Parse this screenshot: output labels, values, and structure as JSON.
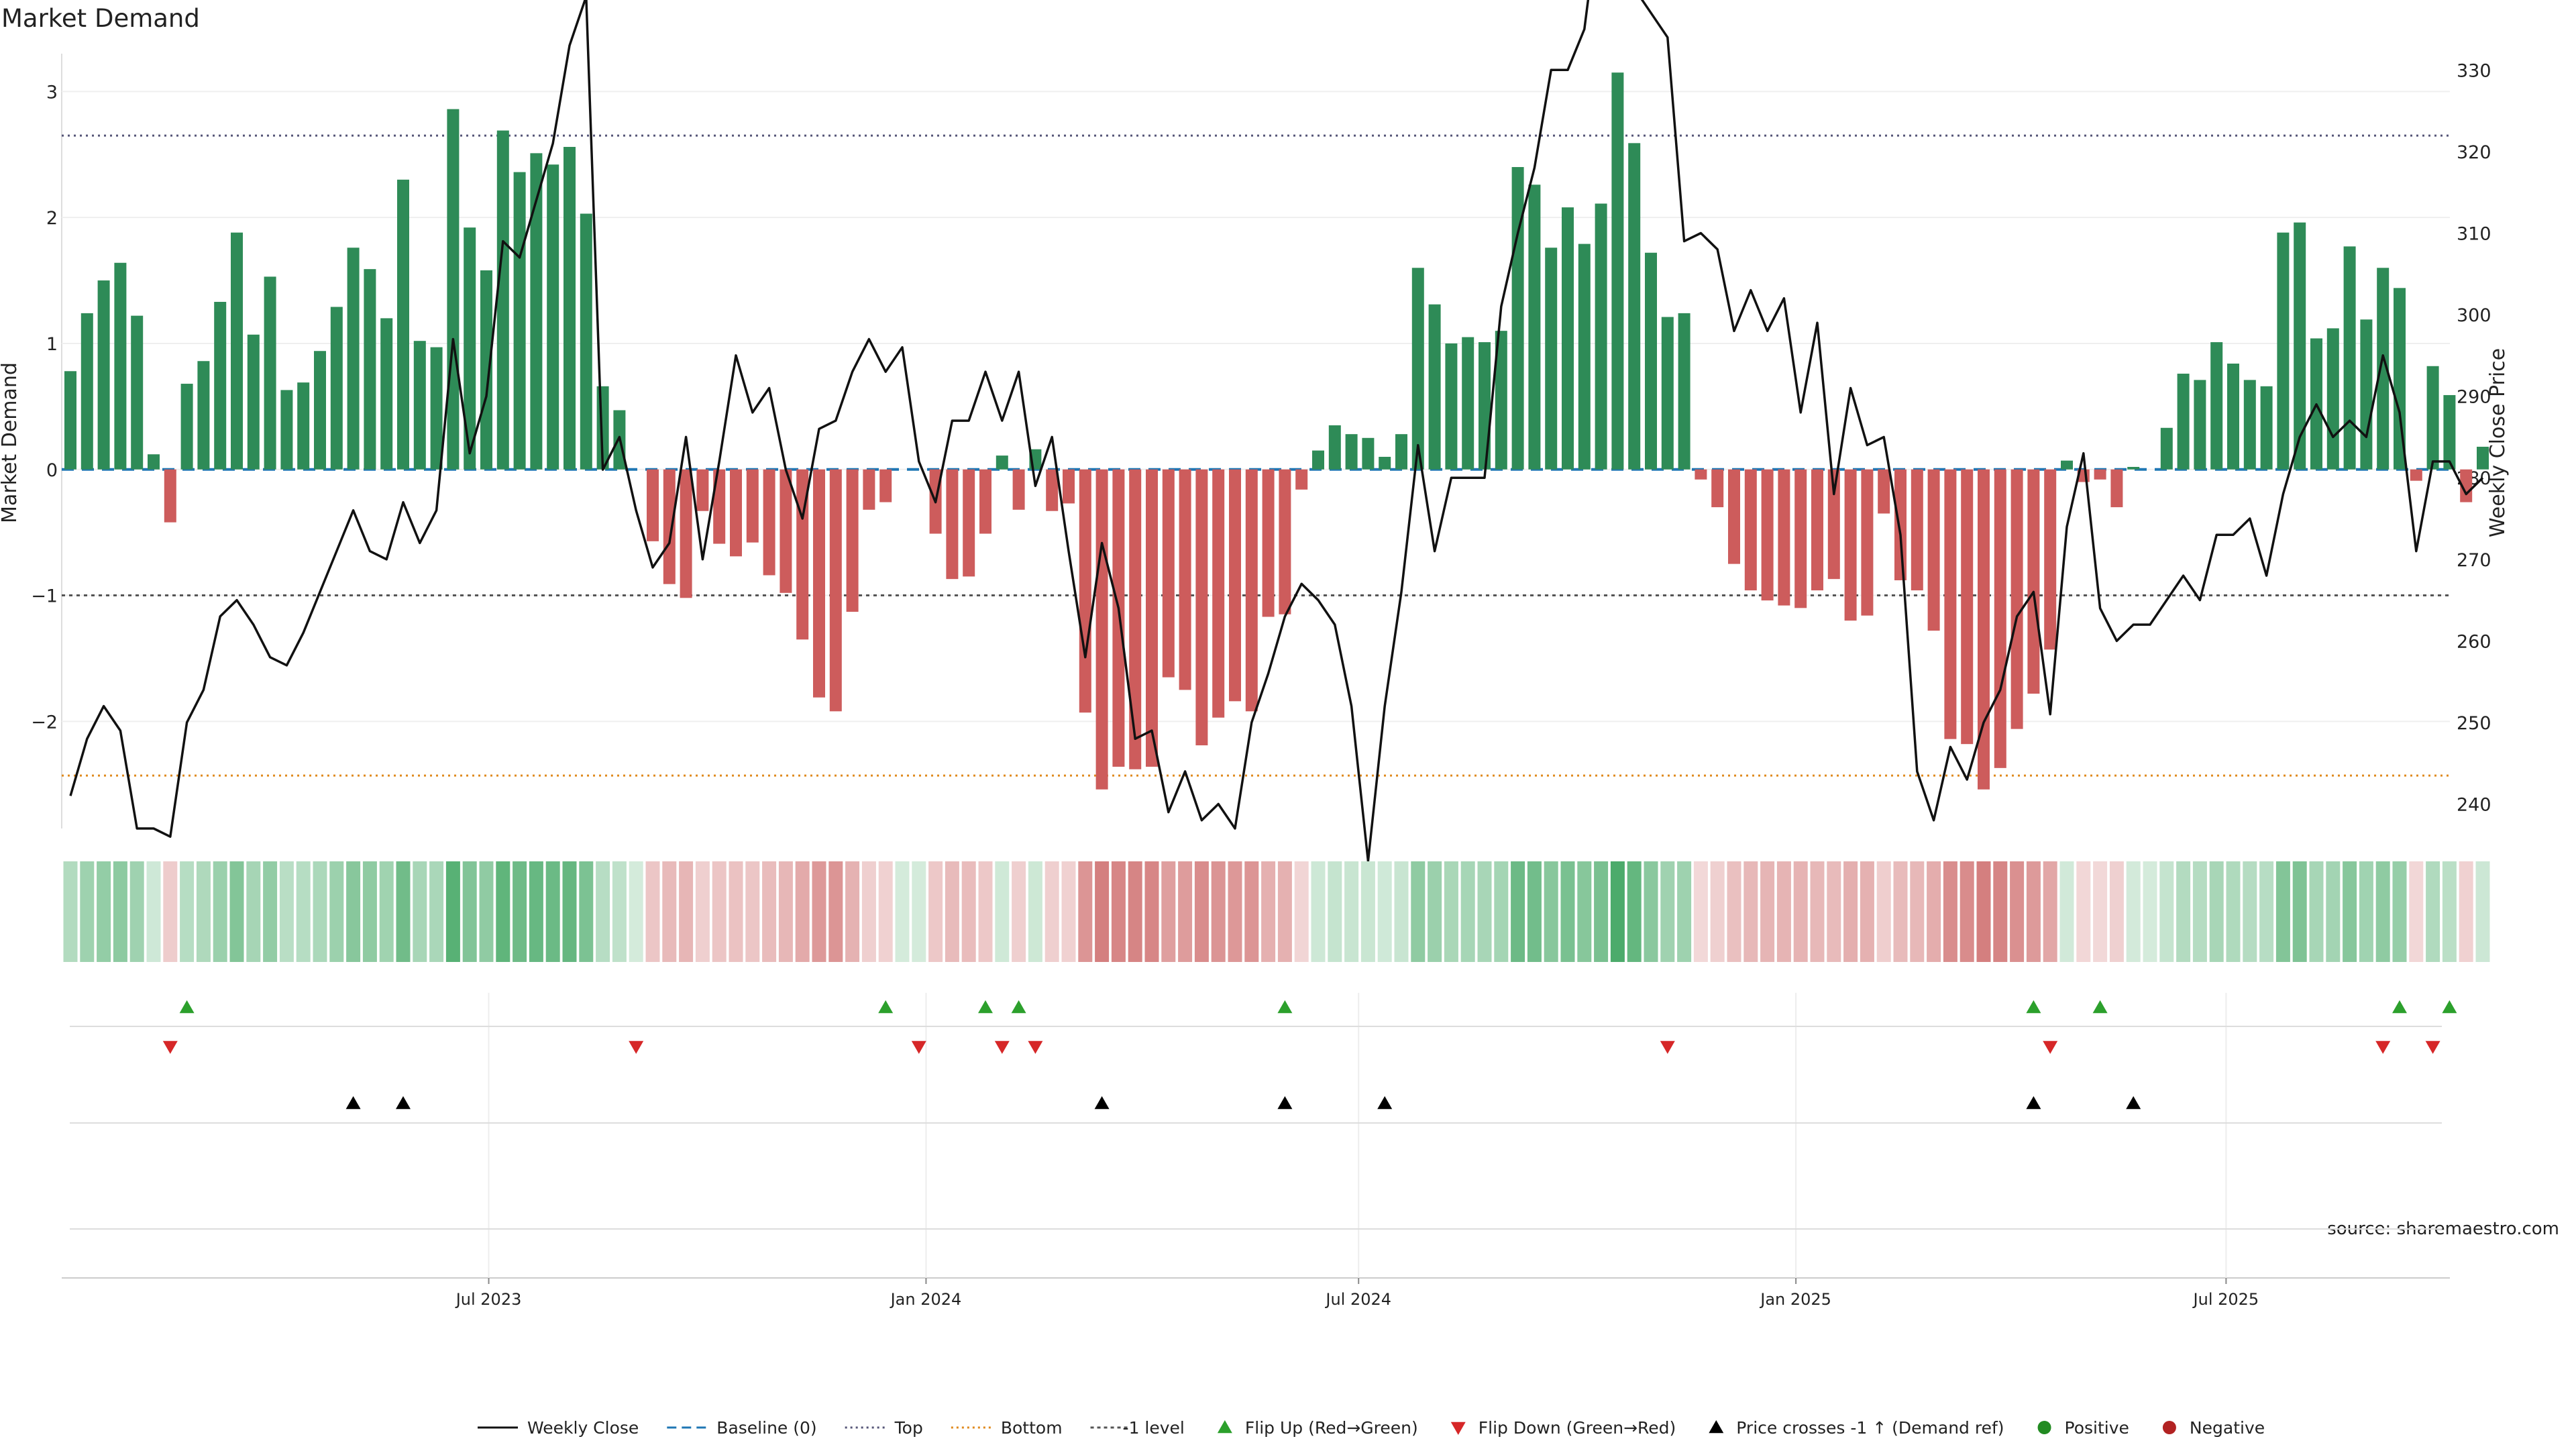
{
  "title": "Market Demand",
  "source": "source: sharemaestro.com",
  "y_left_label": "Market Demand",
  "y_right_label": "Weekly Close Price",
  "colors": {
    "positive": "#2e8b57",
    "negative": "#cd5c5c",
    "price": "#111111",
    "baseline": "#1f77b4",
    "top": "#555577",
    "bottom": "#e08a1e",
    "minus1": "#555555",
    "flip_up": "#2ca02c",
    "flip_down": "#d62728",
    "cross": "#000000",
    "positive_dot": "#228b22",
    "negative_dot": "#b22222"
  },
  "legend": [
    {
      "label": "Weekly Close",
      "kind": "solid"
    },
    {
      "label": "Baseline (0)",
      "kind": "dash"
    },
    {
      "label": "Top",
      "kind": "dot"
    },
    {
      "label": "Bottom",
      "kind": "dot-orange"
    },
    {
      "label": "-1 level",
      "kind": "dot-grey"
    },
    {
      "label": "Flip Up (Red→Green)",
      "kind": "tri-up"
    },
    {
      "label": "Flip Down (Green→Red)",
      "kind": "tri-down"
    },
    {
      "label": "Price crosses -1 ↑ (Demand ref)",
      "kind": "tri-black"
    },
    {
      "label": "Positive",
      "kind": "dot-green"
    },
    {
      "label": "Negative",
      "kind": "dot-red"
    }
  ],
  "chart_data": {
    "type": "bar",
    "x_start": "2023-01-06",
    "x_ticks": [
      {
        "label": "Jul 2023",
        "date": "2023-07-01"
      },
      {
        "label": "Jan 2024",
        "date": "2024-01-01"
      },
      {
        "label": "Jul 2024",
        "date": "2024-07-01"
      },
      {
        "label": "Jan 2025",
        "date": "2025-01-01"
      },
      {
        "label": "Jul 2025",
        "date": "2025-07-01"
      }
    ],
    "left_axis": {
      "label": "Market Demand",
      "ylim": [
        -2.85,
        3.3
      ],
      "ticks": [
        -2,
        -1,
        0,
        1,
        2,
        3
      ]
    },
    "right_axis": {
      "label": "Weekly Close Price",
      "ylim": [
        237,
        332
      ],
      "ticks": [
        240,
        250,
        260,
        270,
        280,
        290,
        300,
        310,
        320,
        330
      ]
    },
    "levels": {
      "top": 2.65,
      "bottom": -2.43,
      "minus1": -1.0,
      "baseline": 0
    },
    "demand": [
      0.78,
      1.24,
      1.5,
      1.64,
      1.22,
      0.12,
      -0.42,
      0.68,
      0.86,
      1.33,
      1.88,
      1.07,
      1.53,
      0.63,
      0.69,
      0.94,
      1.29,
      1.76,
      1.59,
      1.2,
      2.3,
      1.02,
      0.97,
      2.86,
      1.92,
      1.58,
      2.69,
      2.36,
      2.51,
      2.42,
      2.56,
      2.03,
      0.66,
      0.47,
      0,
      -0.57,
      -0.91,
      -1.02,
      -0.33,
      -0.59,
      -0.69,
      -0.58,
      -0.84,
      -0.98,
      -1.35,
      -1.81,
      -1.92,
      -1.13,
      -0.32,
      -0.26,
      0,
      0,
      -0.51,
      -0.87,
      -0.85,
      -0.51,
      0.11,
      -0.32,
      0.16,
      -0.33,
      -0.27,
      -1.93,
      -2.54,
      -2.36,
      -2.38,
      -2.36,
      -1.65,
      -1.75,
      -2.19,
      -1.97,
      -1.84,
      -1.92,
      -1.17,
      -1.15,
      -0.16,
      0.15,
      0.35,
      0.28,
      0.25,
      0.1,
      0.28,
      1.6,
      1.31,
      1.0,
      1.05,
      1.01,
      1.1,
      2.4,
      2.26,
      1.76,
      2.08,
      1.79,
      2.11,
      3.15,
      2.59,
      1.72,
      1.21,
      1.24,
      -0.08,
      -0.3,
      -0.75,
      -0.96,
      -1.04,
      -1.08,
      -1.1,
      -0.96,
      -0.87,
      -1.2,
      -1.16,
      -0.35,
      -0.88,
      -0.96,
      -1.28,
      -2.14,
      -2.18,
      -2.54,
      -2.37,
      -2.06,
      -1.78,
      -1.43,
      0.07,
      -0.1,
      -0.08,
      -0.3,
      0.02,
      0,
      0.33,
      0.76,
      0.71,
      1.01,
      0.84,
      0.71,
      0.66,
      1.88,
      1.96,
      1.04,
      1.12,
      1.77,
      1.19,
      1.6,
      1.44,
      -0.09,
      0.82,
      0.59,
      -0.26,
      0.18
    ],
    "price": [
      241,
      248,
      252,
      249,
      237,
      237,
      236,
      250,
      254,
      263,
      265,
      262,
      258,
      257,
      261,
      266,
      271,
      276,
      271,
      270,
      277,
      272,
      276,
      297,
      283,
      290,
      309,
      307,
      314,
      321,
      333,
      339,
      281,
      285,
      276,
      269,
      272,
      285,
      270,
      282,
      295,
      288,
      291,
      281,
      275,
      286,
      287,
      293,
      297,
      293,
      296,
      282,
      277,
      287,
      287,
      293,
      287,
      293,
      279,
      285,
      271,
      258,
      272,
      264,
      248,
      249,
      239,
      244,
      238,
      240,
      237,
      250,
      256,
      263,
      267,
      265,
      262,
      252,
      233,
      252,
      266,
      284,
      271,
      280,
      280,
      280,
      301,
      310,
      318,
      330,
      330,
      335,
      351,
      348,
      340,
      337,
      334,
      309,
      310,
      308,
      298,
      303,
      298,
      302,
      288,
      299,
      278,
      291,
      284,
      285,
      273,
      244,
      238,
      247,
      243,
      250,
      254,
      263,
      266,
      251,
      274,
      283,
      264,
      260,
      262,
      262,
      265,
      268,
      265,
      273,
      273,
      275,
      268,
      278,
      285,
      289,
      285,
      287,
      285,
      295,
      288,
      271,
      282,
      282,
      278,
      280
    ],
    "flip_up_index": [
      7,
      49,
      55,
      57,
      73,
      118,
      122,
      140,
      143
    ],
    "flip_down_index": [
      6,
      34,
      51,
      56,
      58,
      96,
      119,
      139,
      142
    ],
    "cross_up_index": [
      17,
      20,
      62,
      73,
      79,
      118,
      124
    ]
  }
}
